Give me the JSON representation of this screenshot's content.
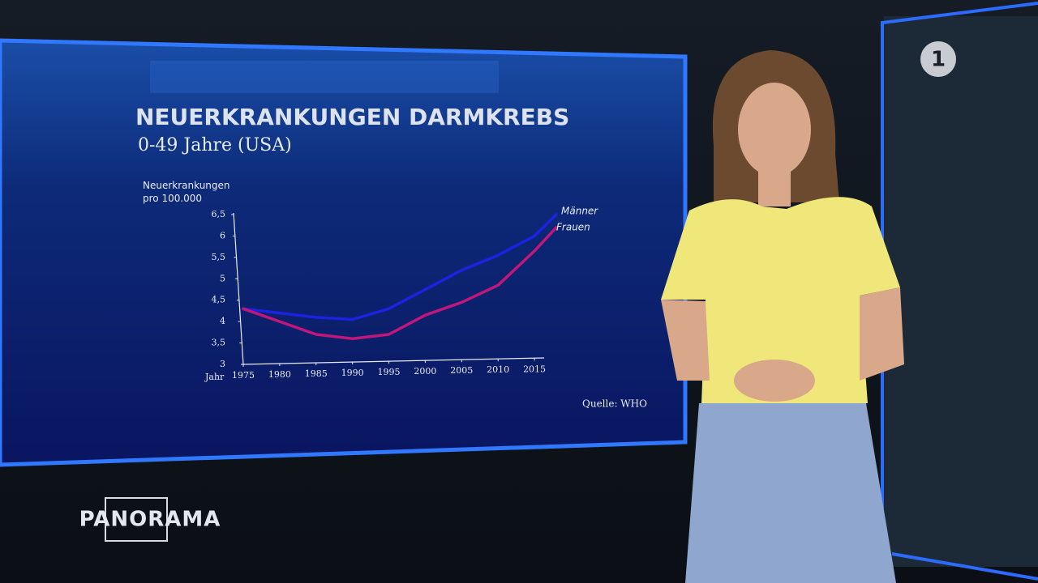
{
  "chart_data": {
    "type": "line",
    "title": "NEUERKRANKUNGEN DARMKREBS",
    "subtitle": "0-49 Jahre (USA)",
    "ylabel": "Neuerkrankungen pro 100.000",
    "xlabel": "Jahr",
    "source": "Quelle: WHO",
    "x": [
      1975,
      1980,
      1985,
      1990,
      1995,
      2000,
      2005,
      2010,
      2015,
      2018
    ],
    "series": [
      {
        "name": "Männer",
        "color": "#1c22e0",
        "values": [
          4.3,
          4.2,
          4.1,
          4.05,
          4.3,
          4.75,
          5.2,
          5.55,
          6.0,
          6.5
        ]
      },
      {
        "name": "Frauen",
        "color": "#c0187a",
        "values": [
          4.3,
          4.0,
          3.7,
          3.6,
          3.7,
          4.15,
          4.45,
          4.85,
          5.65,
          6.2
        ]
      }
    ],
    "xlim": [
      1975,
      2018
    ],
    "xticks": [
      1975,
      1980,
      1985,
      1990,
      1995,
      2000,
      2005,
      2010,
      2015
    ],
    "ylim": [
      3,
      6.5
    ],
    "yticks": [
      3,
      {
        "value": 3.5,
        "label": "3,5"
      },
      4,
      {
        "value": 4.5,
        "label": "4,5"
      },
      5,
      {
        "value": 5.5,
        "label": "5,5"
      },
      6,
      {
        "value": 6.5,
        "label": "6,5"
      }
    ],
    "grid": false
  },
  "broadcast": {
    "show_logo": "PANORAMA",
    "channel_logo": "1"
  }
}
